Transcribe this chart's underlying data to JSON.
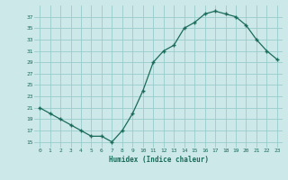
{
  "x": [
    0,
    1,
    2,
    3,
    4,
    5,
    6,
    7,
    8,
    9,
    10,
    11,
    12,
    13,
    14,
    15,
    16,
    17,
    18,
    19,
    20,
    21,
    22,
    23
  ],
  "y": [
    21,
    20,
    19,
    18,
    17,
    16,
    16,
    15,
    17,
    20,
    24,
    29,
    31,
    32,
    35,
    36,
    37.5,
    38,
    37.5,
    37,
    35.5,
    33,
    31,
    29.5
  ],
  "xlabel": "Humidex (Indice chaleur)",
  "ylim": [
    14,
    39
  ],
  "xlim": [
    -0.5,
    23.5
  ],
  "yticks": [
    15,
    17,
    19,
    21,
    23,
    25,
    27,
    29,
    31,
    33,
    35,
    37
  ],
  "xticks": [
    0,
    1,
    2,
    3,
    4,
    5,
    6,
    7,
    8,
    9,
    10,
    11,
    12,
    13,
    14,
    15,
    16,
    17,
    18,
    19,
    20,
    21,
    22,
    23
  ],
  "line_color": "#1a6b5a",
  "marker": "+",
  "bg_color": "#cce8e8",
  "grid_color": "#99cccc",
  "tick_color": "#1a6b5a",
  "label_color": "#1a6b5a"
}
